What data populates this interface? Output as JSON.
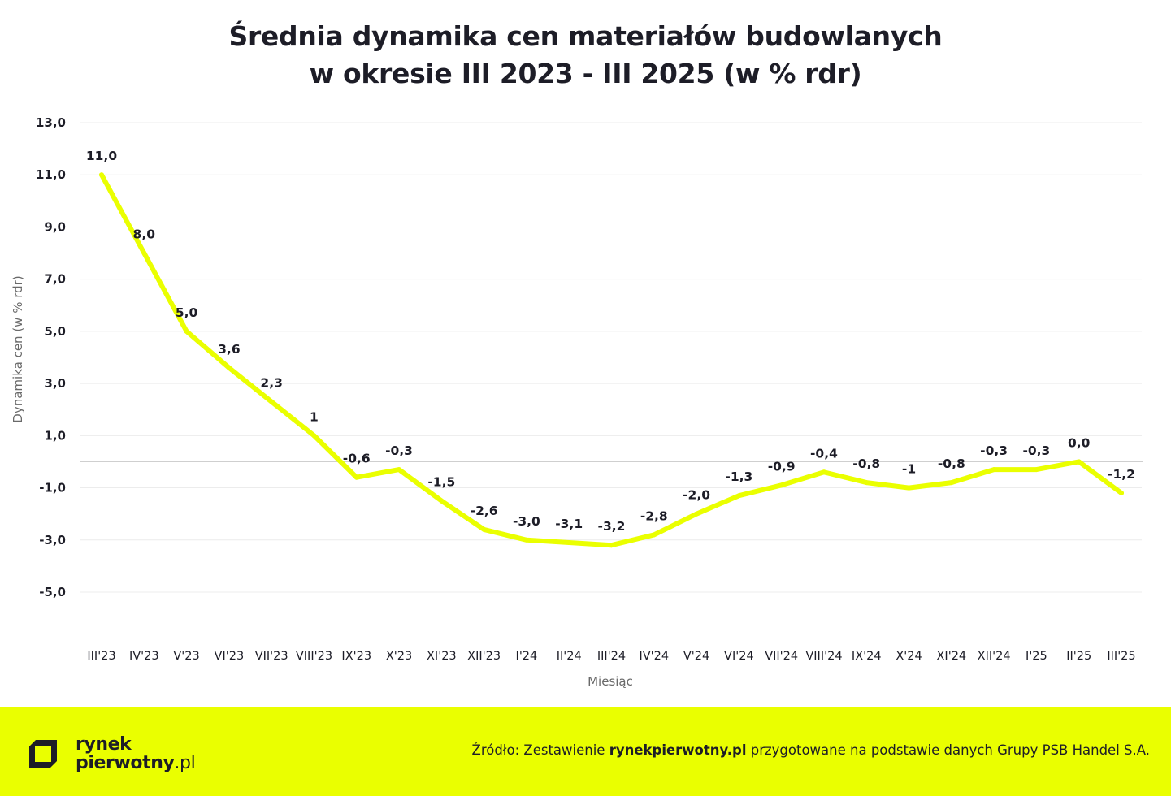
{
  "title": {
    "line1": "Średnia dynamika cen materiałów budowlanych",
    "line2": "w okresie III 2023 - III 2025 (w % rdr)"
  },
  "chart_data": {
    "type": "line",
    "title": "Średnia dynamika cen materiałów budowlanych w okresie III 2023 - III 2025 (w % rdr)",
    "xlabel": "Miesiąc",
    "ylabel": "Dynamika cen (w % rdr)",
    "ylim": [
      -5,
      13
    ],
    "yticks": [
      "13,0",
      "11,0",
      "9,0",
      "7,0",
      "5,0",
      "3,0",
      "1,0",
      "-1,0",
      "-3,0",
      "-5,0"
    ],
    "ytick_values": [
      13,
      11,
      9,
      7,
      5,
      3,
      1,
      -1,
      -3,
      -5
    ],
    "grid": true,
    "line_color": "#eaff00",
    "categories": [
      "III'23",
      "IV'23",
      "V'23",
      "VI'23",
      "VII'23",
      "VIII'23",
      "IX'23",
      "X'23",
      "XI'23",
      "XII'23",
      "I'24",
      "II'24",
      "III'24",
      "IV'24",
      "V'24",
      "VI'24",
      "VII'24",
      "VIII'24",
      "IX'24",
      "X'24",
      "XI'24",
      "XII'24",
      "I'25",
      "II'25",
      "III'25"
    ],
    "series": [
      {
        "values": [
          11.0,
          8.0,
          5.0,
          3.6,
          2.3,
          1.0,
          -0.6,
          -0.3,
          -1.5,
          -2.6,
          -3.0,
          -3.1,
          -3.2,
          -2.8,
          -2.0,
          -1.3,
          -0.9,
          -0.4,
          -0.8,
          -1.0,
          -0.8,
          -0.3,
          -0.3,
          0.0,
          -1.2
        ],
        "labels": [
          "11,0",
          "8,0",
          "5,0",
          "3,6",
          "2,3",
          "1",
          "-0,6",
          "-0,3",
          "-1,5",
          "-2,6",
          "-3,0",
          "-3,1",
          "-3,2",
          "-2,8",
          "-2,0",
          "-1,3",
          "-0,9",
          "-0,4",
          "-0,8",
          "-1",
          "-0,8",
          "-0,3",
          "-0,3",
          "0,0",
          "-1,2"
        ]
      }
    ]
  },
  "footer": {
    "logo_line1": "rynek",
    "logo_line2": "pierwotny",
    "logo_tld": ".pl",
    "source_prefix": "Źródło: Zestawienie ",
    "source_bold": "rynekpierwotny.pl",
    "source_suffix": " przygotowane na podstawie danych Grupy PSB Handel S.A.",
    "background": "#eaff00"
  }
}
